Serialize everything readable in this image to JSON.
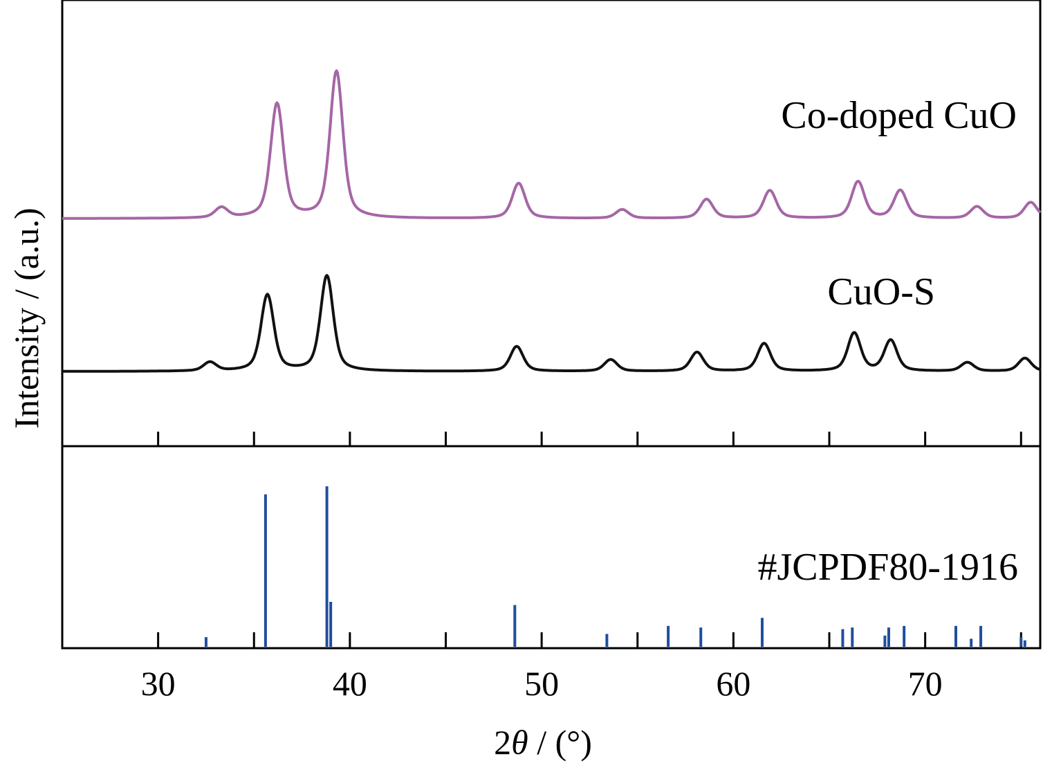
{
  "chart_data": {
    "type": "line",
    "xlabel_prefix": "2",
    "xlabel_symbol": "θ",
    "xlabel_suffix": " / (°)",
    "ylabel": "Intensity / (a.u.)",
    "xlim": [
      25,
      76
    ],
    "x_ticks": [
      30,
      40,
      50,
      60,
      70
    ],
    "x_minor_ticks": [
      35,
      45,
      55,
      65,
      75
    ],
    "series_colors": [
      "#a566a6",
      "#111111"
    ],
    "reference_color": "#1f4e9e",
    "series": [
      {
        "name": "Co-doped CuO",
        "peaks": [
          {
            "x": 33.3,
            "y": 0.07
          },
          {
            "x": 36.2,
            "y": 0.78
          },
          {
            "x": 39.3,
            "y": 1.0
          },
          {
            "x": 48.8,
            "y": 0.24
          },
          {
            "x": 54.2,
            "y": 0.06
          },
          {
            "x": 58.6,
            "y": 0.13
          },
          {
            "x": 61.9,
            "y": 0.19
          },
          {
            "x": 66.5,
            "y": 0.25
          },
          {
            "x": 68.7,
            "y": 0.19
          },
          {
            "x": 72.7,
            "y": 0.08
          },
          {
            "x": 75.5,
            "y": 0.11
          }
        ]
      },
      {
        "name": "CuO-S",
        "peaks": [
          {
            "x": 32.7,
            "y": 0.06
          },
          {
            "x": 35.7,
            "y": 0.52
          },
          {
            "x": 38.8,
            "y": 0.65
          },
          {
            "x": 48.7,
            "y": 0.17
          },
          {
            "x": 53.6,
            "y": 0.08
          },
          {
            "x": 58.1,
            "y": 0.13
          },
          {
            "x": 61.6,
            "y": 0.19
          },
          {
            "x": 66.3,
            "y": 0.26
          },
          {
            "x": 68.2,
            "y": 0.21
          },
          {
            "x": 72.2,
            "y": 0.06
          },
          {
            "x": 75.2,
            "y": 0.09
          }
        ]
      }
    ],
    "reference": {
      "name": "#JCPDF80-1916",
      "lines": [
        {
          "x": 32.5,
          "y": 0.06
        },
        {
          "x": 35.6,
          "y": 0.95
        },
        {
          "x": 38.8,
          "y": 1.0
        },
        {
          "x": 39.0,
          "y": 0.28
        },
        {
          "x": 48.6,
          "y": 0.26
        },
        {
          "x": 53.4,
          "y": 0.08
        },
        {
          "x": 56.6,
          "y": 0.13
        },
        {
          "x": 58.3,
          "y": 0.12
        },
        {
          "x": 61.5,
          "y": 0.18
        },
        {
          "x": 65.7,
          "y": 0.11
        },
        {
          "x": 66.2,
          "y": 0.12
        },
        {
          "x": 67.9,
          "y": 0.07
        },
        {
          "x": 68.1,
          "y": 0.12
        },
        {
          "x": 68.9,
          "y": 0.13
        },
        {
          "x": 71.6,
          "y": 0.13
        },
        {
          "x": 72.4,
          "y": 0.05
        },
        {
          "x": 72.9,
          "y": 0.13
        },
        {
          "x": 75.0,
          "y": 0.06
        },
        {
          "x": 75.2,
          "y": 0.04
        }
      ]
    }
  }
}
